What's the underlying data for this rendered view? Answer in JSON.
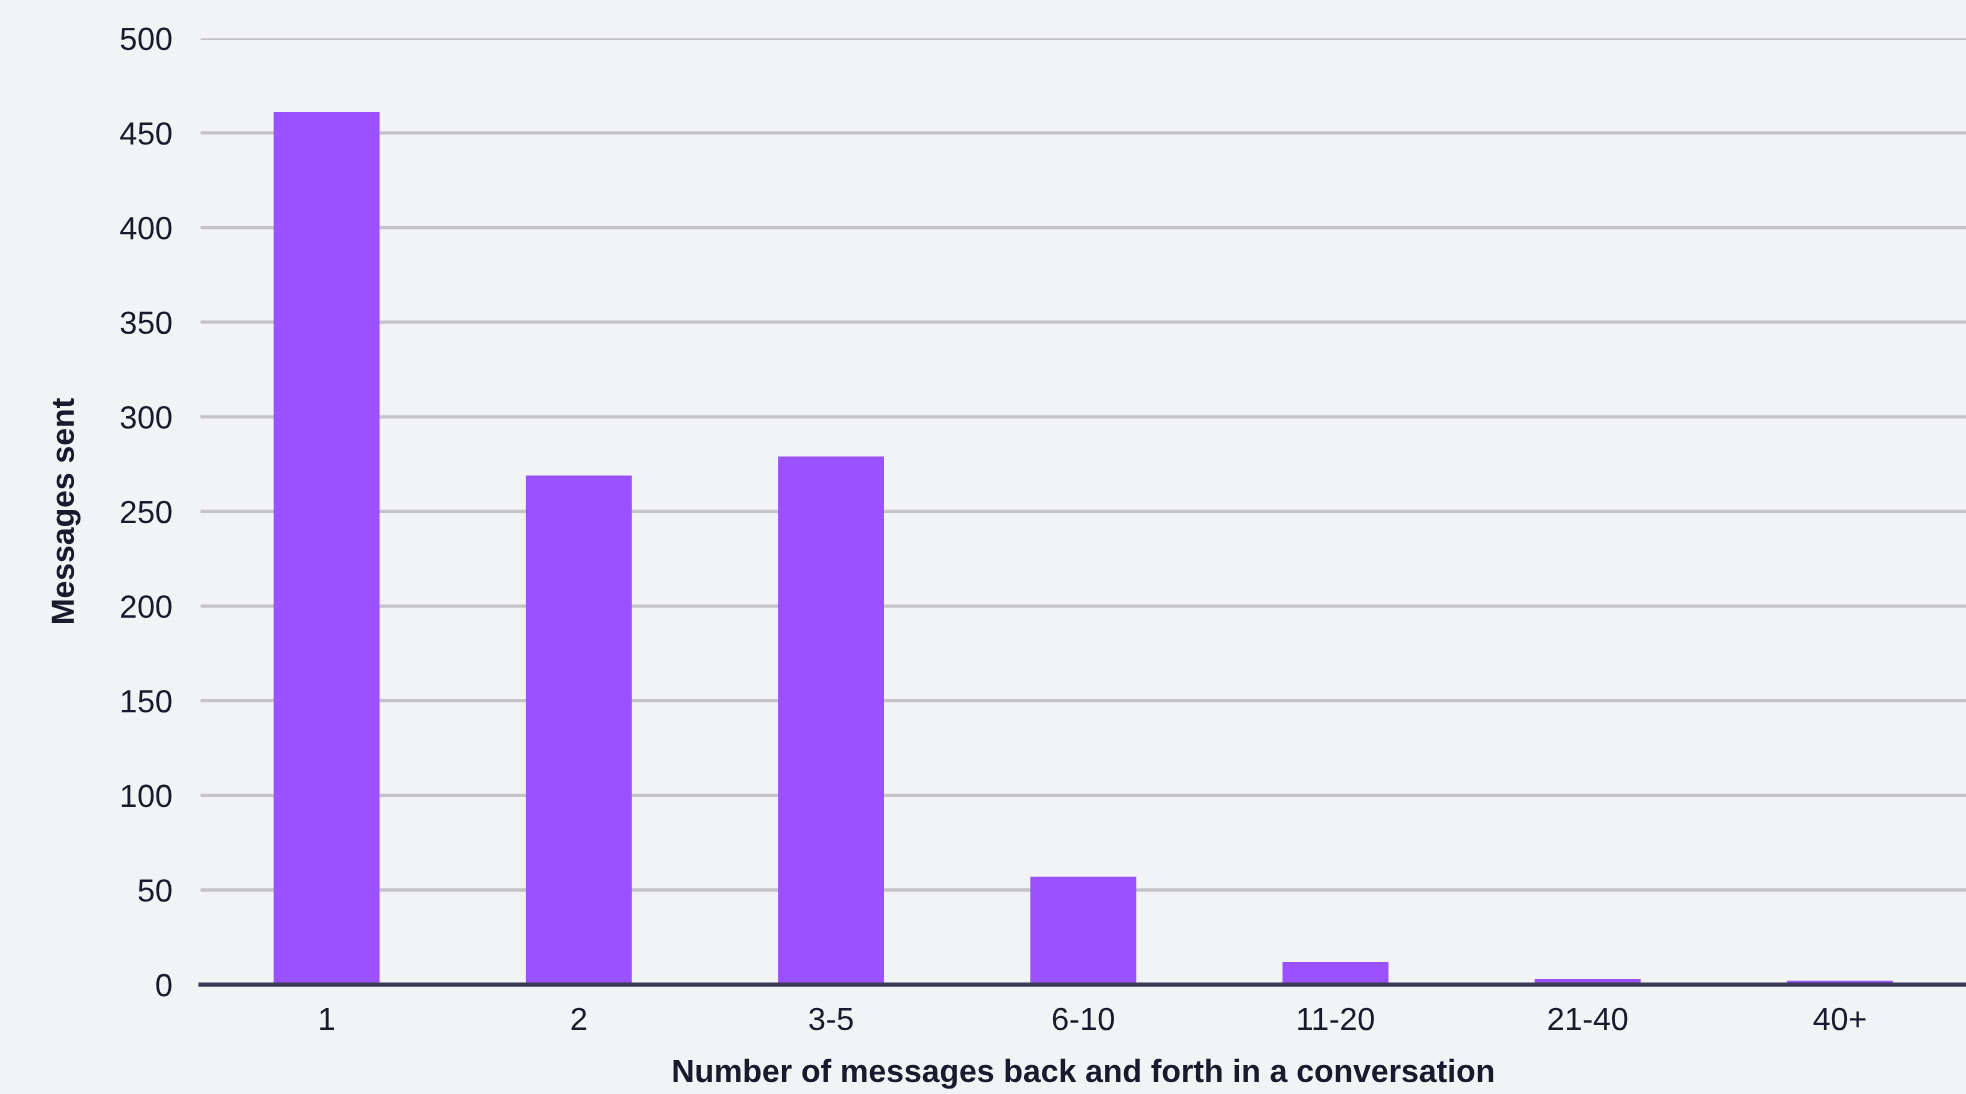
{
  "chart_data": {
    "type": "bar",
    "xlabel": "Number of messages back and forth in a conversation",
    "ylabel": "Messages sent",
    "categories": [
      "1",
      "2",
      "3-5",
      "6-10",
      "11-20",
      "21-40",
      "40+"
    ],
    "values": [
      461,
      269,
      279,
      57,
      12,
      3,
      2
    ],
    "color": "#9b51ff",
    "ylim": [
      0,
      500
    ],
    "yticks": [
      0,
      50,
      100,
      150,
      200,
      250,
      300,
      350,
      400,
      450,
      500
    ],
    "grid": "y",
    "legend": false
  }
}
